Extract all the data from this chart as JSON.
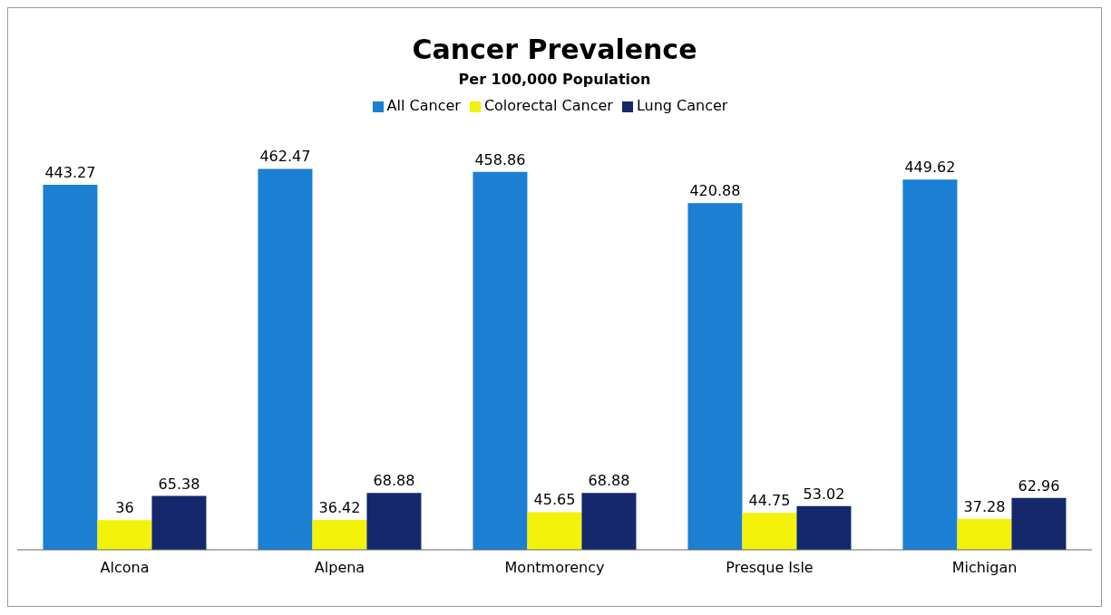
{
  "chart_data": {
    "type": "bar",
    "title": "Cancer Prevalence",
    "subtitle": "Per 100,000 Population",
    "categories": [
      "Alcona",
      "Alpena",
      "Montmorency",
      "Presque Isle",
      "Michigan"
    ],
    "series": [
      {
        "name": "All Cancer",
        "color": "#1b7fd3",
        "values": [
          443.27,
          462.47,
          458.86,
          420.88,
          449.62
        ]
      },
      {
        "name": "Colorectal Cancer",
        "color": "#f2f20a",
        "values": [
          36,
          36.42,
          45.65,
          44.75,
          37.28
        ]
      },
      {
        "name": "Lung Cancer",
        "color": "#14286b",
        "values": [
          65.38,
          68.88,
          68.88,
          53.02,
          62.96
        ]
      }
    ],
    "data_labels": true,
    "legend": "top",
    "grid": false
  }
}
